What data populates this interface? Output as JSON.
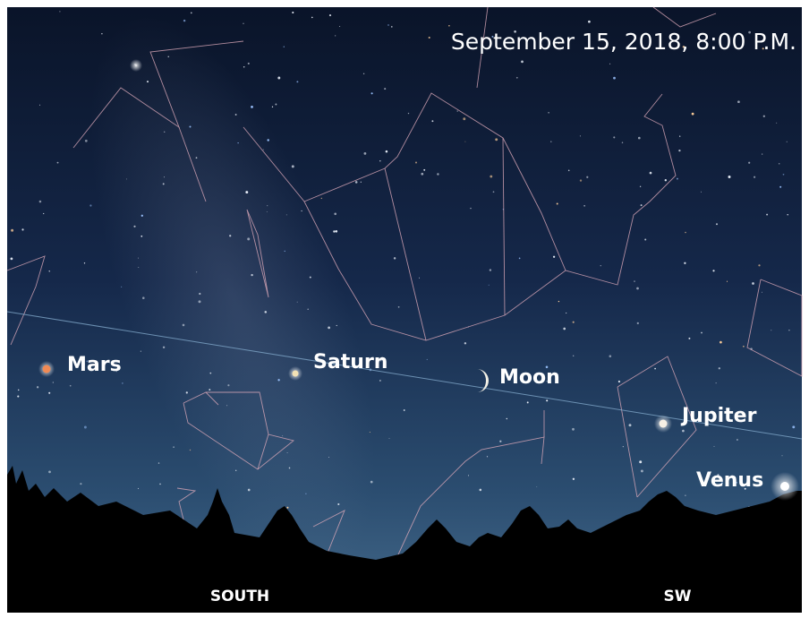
{
  "title": "September 15, 2018, 8:00 P.M.",
  "objects": [
    {
      "label": "Mars"
    },
    {
      "label": "Saturn"
    },
    {
      "label": "Moon"
    },
    {
      "label": "Jupiter"
    },
    {
      "label": "Venus"
    }
  ],
  "directions": [
    "SOUTH",
    "SW"
  ]
}
